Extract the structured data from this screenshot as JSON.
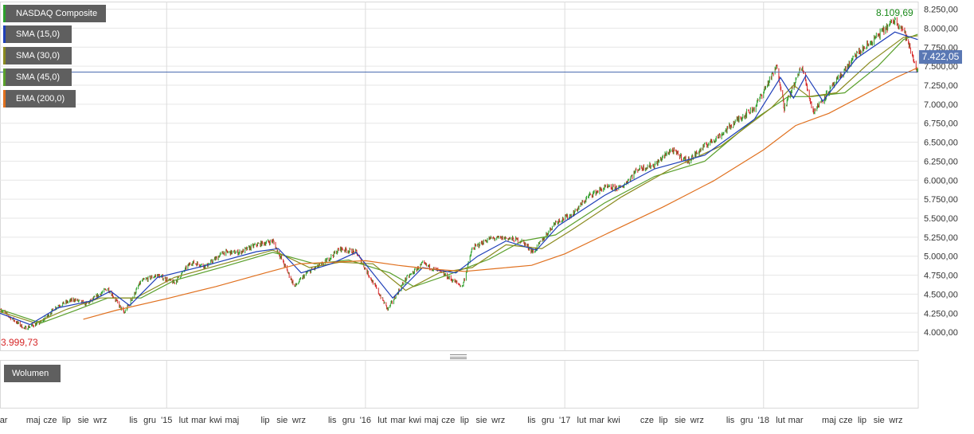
{
  "legend": [
    {
      "label": "NASDAQ Composite",
      "color": "#2ca02c"
    },
    {
      "label": "SMA (15,0)",
      "color": "#1f3fb8"
    },
    {
      "label": "SMA (30,0)",
      "color": "#8a8a1e"
    },
    {
      "label": "SMA (45,0)",
      "color": "#5aa02c"
    },
    {
      "label": "EMA (200,0)",
      "color": "#e0701e"
    }
  ],
  "volume_label": "Wolumen",
  "max_label": "8.109,69",
  "min_label": "3.999,73",
  "last_label": "7.422,05",
  "colors": {
    "up": "#2ca02c",
    "down": "#d62728",
    "sma15": "#1f3fb8",
    "sma30": "#8a8a1e",
    "sma45": "#5aa02c",
    "ema200": "#e0701e",
    "grid": "#e6e6e6",
    "lastline": "#4a6cb0"
  },
  "chart_data": {
    "type": "line",
    "title": "NASDAQ Composite",
    "ylim": [
      3750,
      8350
    ],
    "yticks": [
      4000,
      4250,
      4500,
      4750,
      5000,
      5250,
      5500,
      5750,
      6000,
      6250,
      6500,
      6750,
      7000,
      7250,
      7500,
      7750,
      8000,
      8250
    ],
    "ytick_labels": [
      "4.000,00",
      "4.250,00",
      "4.500,00",
      "4.750,00",
      "5.000,00",
      "5.250,00",
      "5.500,00",
      "5.750,00",
      "6.000,00",
      "6.250,00",
      "6.500,00",
      "6.750,00",
      "7.000,00",
      "7.250,00",
      "7.500,00",
      "7.750,00",
      "8.000,00",
      "8.250,00"
    ],
    "xlim": [
      "2014-03-01",
      "2018-10-12"
    ],
    "xticks": [
      {
        "date": "2014-03-01",
        "label": "mar"
      },
      {
        "date": "2014-05-01",
        "label": "maj"
      },
      {
        "date": "2014-06-01",
        "label": "cze"
      },
      {
        "date": "2014-07-01",
        "label": "lip"
      },
      {
        "date": "2014-08-01",
        "label": "sie"
      },
      {
        "date": "2014-09-01",
        "label": "wrz"
      },
      {
        "date": "2014-11-01",
        "label": "lis"
      },
      {
        "date": "2014-12-01",
        "label": "gru"
      },
      {
        "date": "2015-01-01",
        "label": "'15"
      },
      {
        "date": "2015-02-01",
        "label": "lut"
      },
      {
        "date": "2015-03-01",
        "label": "mar"
      },
      {
        "date": "2015-04-01",
        "label": "kwi"
      },
      {
        "date": "2015-05-01",
        "label": "maj"
      },
      {
        "date": "2015-07-01",
        "label": "lip"
      },
      {
        "date": "2015-08-01",
        "label": "sie"
      },
      {
        "date": "2015-09-01",
        "label": "wrz"
      },
      {
        "date": "2015-11-01",
        "label": "lis"
      },
      {
        "date": "2015-12-01",
        "label": "gru"
      },
      {
        "date": "2016-01-01",
        "label": "'16"
      },
      {
        "date": "2016-02-01",
        "label": "lut"
      },
      {
        "date": "2016-03-01",
        "label": "mar"
      },
      {
        "date": "2016-04-01",
        "label": "kwi"
      },
      {
        "date": "2016-05-01",
        "label": "maj"
      },
      {
        "date": "2016-06-01",
        "label": "cze"
      },
      {
        "date": "2016-07-01",
        "label": "lip"
      },
      {
        "date": "2016-08-01",
        "label": "sie"
      },
      {
        "date": "2016-09-01",
        "label": "wrz"
      },
      {
        "date": "2016-11-01",
        "label": "lis"
      },
      {
        "date": "2016-12-01",
        "label": "gru"
      },
      {
        "date": "2017-01-01",
        "label": "'17"
      },
      {
        "date": "2017-02-01",
        "label": "lut"
      },
      {
        "date": "2017-03-01",
        "label": "mar"
      },
      {
        "date": "2017-04-01",
        "label": "kwi"
      },
      {
        "date": "2017-06-01",
        "label": "cze"
      },
      {
        "date": "2017-07-01",
        "label": "lip"
      },
      {
        "date": "2017-08-01",
        "label": "sie"
      },
      {
        "date": "2017-09-01",
        "label": "wrz"
      },
      {
        "date": "2017-11-01",
        "label": "lis"
      },
      {
        "date": "2017-12-01",
        "label": "gru"
      },
      {
        "date": "2018-01-01",
        "label": "'18"
      },
      {
        "date": "2018-02-01",
        "label": "lut"
      },
      {
        "date": "2018-03-01",
        "label": "mar"
      },
      {
        "date": "2018-05-01",
        "label": "maj"
      },
      {
        "date": "2018-06-01",
        "label": "cze"
      },
      {
        "date": "2018-07-01",
        "label": "lip"
      },
      {
        "date": "2018-08-01",
        "label": "sie"
      },
      {
        "date": "2018-09-01",
        "label": "wrz"
      }
    ],
    "year_lines": [
      "2015-01-01",
      "2016-01-01",
      "2017-01-01",
      "2018-01-01"
    ],
    "max": {
      "date": "2018-08-30",
      "value": 8109.69
    },
    "min": {
      "date": "2014-04-15",
      "value": 3999.73
    },
    "last": {
      "date": "2018-10-11",
      "value": 7422.05
    },
    "series": [
      {
        "name": "NASDAQ Composite",
        "kind": "close",
        "x": [
          "2014-03-01",
          "2014-04-15",
          "2014-05-15",
          "2014-06-15",
          "2014-07-15",
          "2014-08-07",
          "2014-09-15",
          "2014-10-15",
          "2014-11-15",
          "2014-12-15",
          "2015-01-15",
          "2015-02-15",
          "2015-03-15",
          "2015-04-15",
          "2015-05-15",
          "2015-06-15",
          "2015-07-15",
          "2015-08-24",
          "2015-09-15",
          "2015-10-15",
          "2015-11-15",
          "2015-12-15",
          "2016-01-15",
          "2016-02-11",
          "2016-03-15",
          "2016-04-15",
          "2016-05-15",
          "2016-06-27",
          "2016-07-15",
          "2016-08-15",
          "2016-09-15",
          "2016-10-15",
          "2016-11-04",
          "2016-12-15",
          "2017-01-15",
          "2017-02-15",
          "2017-03-15",
          "2017-04-15",
          "2017-05-15",
          "2017-06-15",
          "2017-07-15",
          "2017-08-15",
          "2017-09-15",
          "2017-10-15",
          "2017-11-15",
          "2017-12-15",
          "2018-01-26",
          "2018-02-08",
          "2018-03-12",
          "2018-04-02",
          "2018-05-15",
          "2018-06-20",
          "2018-07-15",
          "2018-08-30",
          "2018-09-15",
          "2018-10-11"
        ],
        "values": [
          4300,
          4050,
          4130,
          4350,
          4430,
          4370,
          4580,
          4250,
          4670,
          4750,
          4650,
          4920,
          4870,
          5050,
          5050,
          5150,
          5200,
          4600,
          4780,
          4900,
          5100,
          5050,
          4650,
          4300,
          4700,
          4900,
          4800,
          4600,
          5100,
          5230,
          5240,
          5200,
          5050,
          5450,
          5550,
          5800,
          5900,
          5900,
          6150,
          6200,
          6400,
          6250,
          6450,
          6600,
          6800,
          6950,
          7500,
          6950,
          7500,
          6900,
          7300,
          7650,
          7800,
          8109.69,
          7980,
          7422.05
        ]
      },
      {
        "name": "SMA (15,0)",
        "kind": "sma",
        "x": [
          "2014-03-01",
          "2014-04-25",
          "2014-06-15",
          "2014-08-15",
          "2014-09-20",
          "2014-10-25",
          "2014-12-15",
          "2015-03-15",
          "2015-06-15",
          "2015-07-25",
          "2015-09-05",
          "2015-10-30",
          "2015-12-15",
          "2016-02-20",
          "2016-04-15",
          "2016-06-15",
          "2016-07-25",
          "2016-09-15",
          "2016-11-10",
          "2016-12-20",
          "2017-03-15",
          "2017-06-15",
          "2017-09-15",
          "2017-12-15",
          "2018-02-01",
          "2018-02-25",
          "2018-03-20",
          "2018-04-20",
          "2018-06-20",
          "2018-08-30",
          "2018-10-11"
        ],
        "values": [
          4250,
          4100,
          4320,
          4410,
          4540,
          4350,
          4720,
          4880,
          5060,
          5100,
          4780,
          4900,
          5050,
          4450,
          4850,
          4780,
          5000,
          5200,
          5080,
          5400,
          5800,
          6150,
          6330,
          6800,
          7350,
          7080,
          7380,
          7040,
          7600,
          7950,
          7850
        ]
      },
      {
        "name": "SMA (30,0)",
        "kind": "sma",
        "x": [
          "2014-03-01",
          "2014-05-05",
          "2014-07-01",
          "2014-09-01",
          "2014-11-05",
          "2015-01-15",
          "2015-04-15",
          "2015-07-15",
          "2015-09-20",
          "2015-11-15",
          "2016-01-15",
          "2016-03-15",
          "2016-05-15",
          "2016-07-15",
          "2016-09-15",
          "2016-11-20",
          "2017-01-15",
          "2017-04-15",
          "2017-07-15",
          "2017-10-15",
          "2018-01-15",
          "2018-02-25",
          "2018-03-25",
          "2018-05-15",
          "2018-07-15",
          "2018-09-15",
          "2018-10-11"
        ],
        "values": [
          4270,
          4120,
          4300,
          4450,
          4450,
          4720,
          4900,
          5080,
          4850,
          4920,
          4900,
          4550,
          4780,
          4850,
          5150,
          5100,
          5350,
          5780,
          6150,
          6450,
          6950,
          7250,
          7100,
          7150,
          7550,
          7880,
          7900
        ]
      },
      {
        "name": "SMA (45,0)",
        "kind": "sma",
        "x": [
          "2014-03-01",
          "2014-05-15",
          "2014-07-15",
          "2014-09-15",
          "2014-11-15",
          "2015-01-15",
          "2015-04-15",
          "2015-07-15",
          "2015-09-30",
          "2015-12-01",
          "2016-02-15",
          "2016-03-30",
          "2016-05-30",
          "2016-08-15",
          "2016-10-15",
          "2016-12-15",
          "2017-03-15",
          "2017-06-15",
          "2017-09-15",
          "2017-12-15",
          "2018-02-15",
          "2018-03-30",
          "2018-05-30",
          "2018-07-30",
          "2018-09-15",
          "2018-10-11"
        ],
        "values": [
          4300,
          4120,
          4280,
          4450,
          4450,
          4680,
          4860,
          5050,
          4900,
          4950,
          4780,
          4600,
          4750,
          4960,
          5200,
          5280,
          5700,
          6050,
          6250,
          6800,
          7100,
          7100,
          7150,
          7500,
          7850,
          7920
        ]
      },
      {
        "name": "EMA (200,0)",
        "kind": "ema",
        "x": [
          "2014-08-01",
          "2014-10-01",
          "2015-01-01",
          "2015-04-01",
          "2015-07-01",
          "2015-09-01",
          "2015-11-01",
          "2016-01-01",
          "2016-03-01",
          "2016-05-01",
          "2016-07-01",
          "2016-09-01",
          "2016-11-01",
          "2017-01-01",
          "2017-04-01",
          "2017-07-01",
          "2017-10-01",
          "2018-01-01",
          "2018-03-01",
          "2018-05-01",
          "2018-07-01",
          "2018-09-01",
          "2018-10-11"
        ],
        "values": [
          4170,
          4290,
          4440,
          4600,
          4780,
          4900,
          4920,
          4940,
          4880,
          4830,
          4800,
          4840,
          4880,
          5030,
          5340,
          5650,
          5990,
          6400,
          6720,
          6880,
          7110,
          7350,
          7480
        ]
      }
    ]
  }
}
